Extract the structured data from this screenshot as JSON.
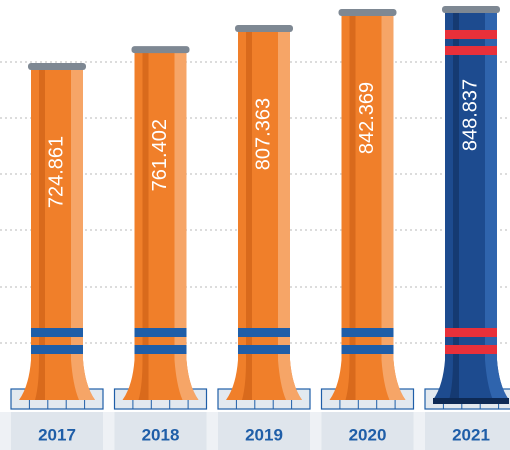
{
  "chart_data": {
    "type": "bar",
    "categories": [
      "2017",
      "2018",
      "2019",
      "2020",
      "2021"
    ],
    "values": [
      724.861,
      761.402,
      807.363,
      842.369,
      848.837
    ],
    "colors": [
      "#f07f2a",
      "#f07f2a",
      "#f07f2a",
      "#f07f2a",
      "#1d4b8f"
    ],
    "band_colors": [
      "#1f5ea8",
      "#1f5ea8",
      "#1f5ea8",
      "#1f5ea8",
      "#e8303a"
    ]
  }
}
